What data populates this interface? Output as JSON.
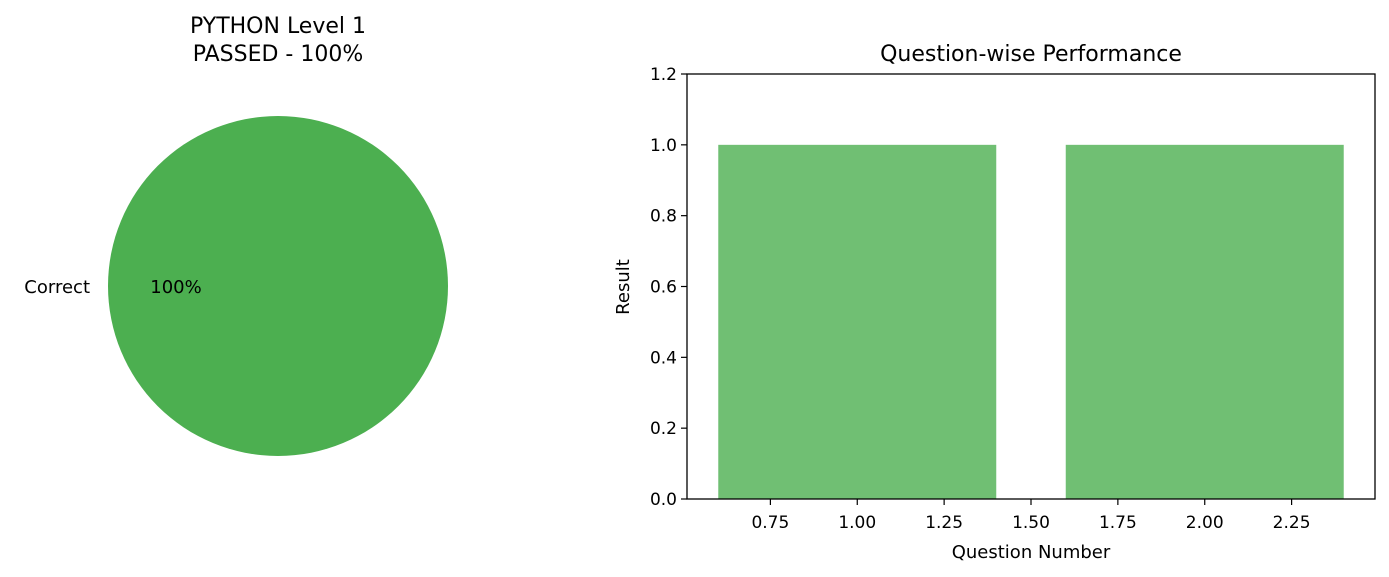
{
  "chart_data": [
    {
      "type": "pie",
      "title": "PYTHON Level 1\nPASSED - 100%",
      "labels": [
        "Correct"
      ],
      "values": [
        100
      ],
      "autopct": [
        "100%"
      ],
      "colors": [
        "#4caf50"
      ]
    },
    {
      "type": "bar",
      "title": "Question-wise Performance",
      "xlabel": "Question Number",
      "ylabel": "Result",
      "x": [
        1,
        2
      ],
      "values": [
        1,
        1
      ],
      "bar_width": 0.8,
      "xlim": [
        0.51,
        2.49
      ],
      "ylim": [
        0,
        1.2
      ],
      "xticks": [
        "0.75",
        "1.00",
        "1.25",
        "1.50",
        "1.75",
        "2.00",
        "2.25"
      ],
      "yticks": [
        "0.0",
        "0.2",
        "0.4",
        "0.6",
        "0.8",
        "1.0",
        "1.2"
      ],
      "color": "#4caf50",
      "opacity": 0.8,
      "grid": false
    }
  ]
}
